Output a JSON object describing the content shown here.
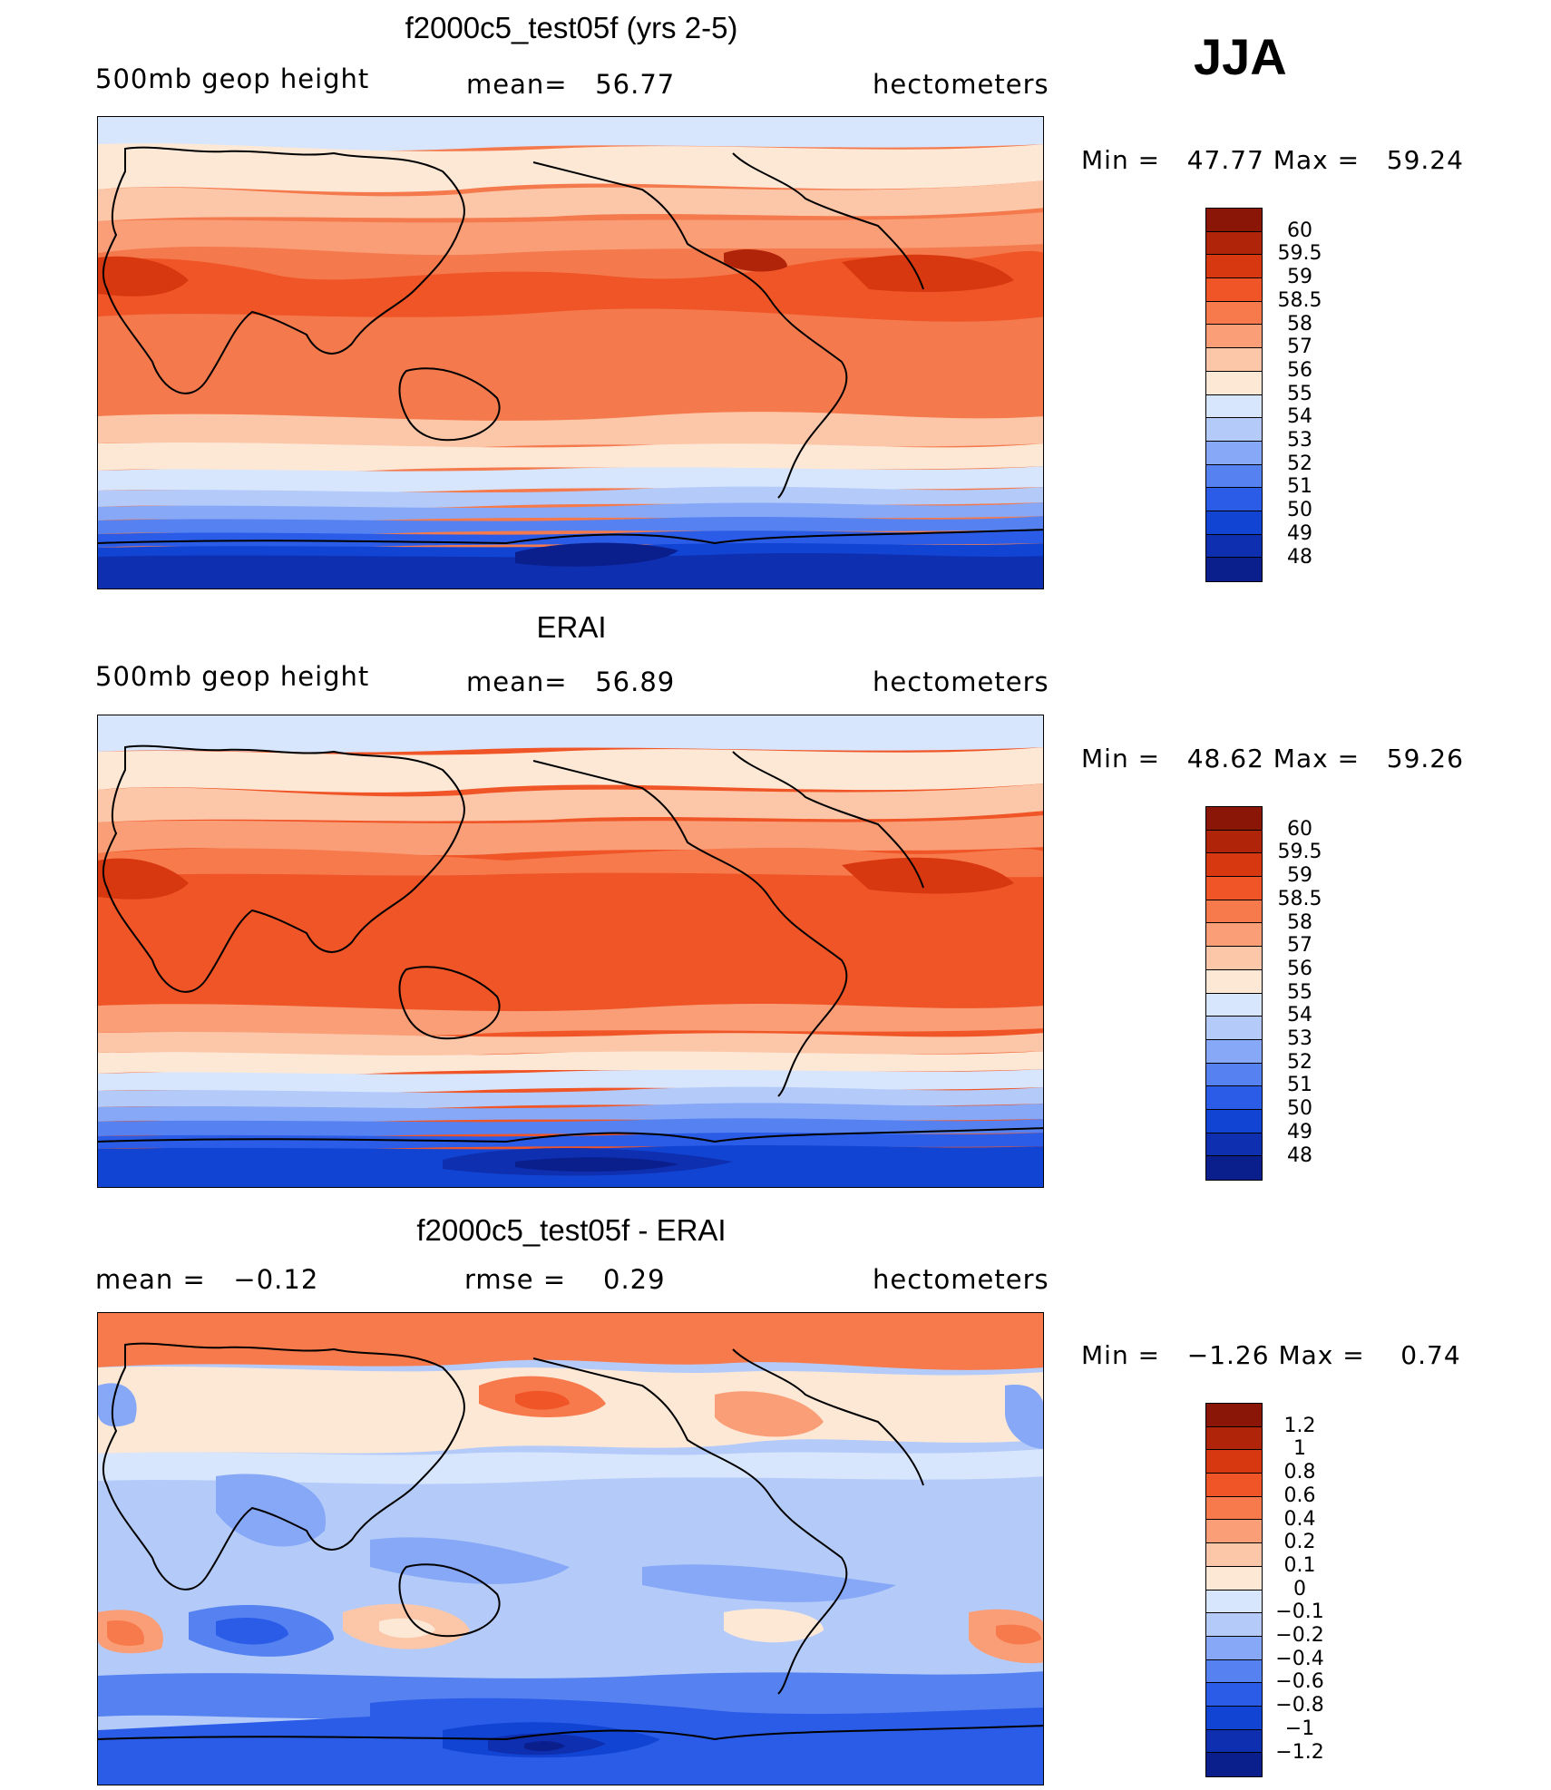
{
  "season": "JJA",
  "panels": [
    {
      "title": "f2000c5_test05f (yrs 2-5)",
      "left_label": "500mb geop height",
      "center_label": "mean=   56.77",
      "right_label": "hectometers",
      "min_max": "Min =   47.77 Max =   59.24",
      "kind": "field",
      "colors": [
        "#0a1e8c",
        "#0d2fb0",
        "#1244d4",
        "#2a5ce8",
        "#5582f0",
        "#86a8f6",
        "#b4cbfa",
        "#d7e6fd",
        "#fde8d6",
        "#fcc6a8",
        "#fa9e77",
        "#f77a4d",
        "#f05527",
        "#d8380f",
        "#b0240a",
        "#8a1607"
      ],
      "ticks": [
        "60",
        "59.5",
        "59",
        "58.5",
        "58",
        "57",
        "56",
        "55",
        "54",
        "53",
        "52",
        "51",
        "50",
        "49",
        "48"
      ]
    },
    {
      "title": "ERAI",
      "left_label": "500mb geop height",
      "center_label": "mean=   56.89",
      "right_label": "hectometers",
      "min_max": "Min =   48.62 Max =   59.26",
      "kind": "field",
      "colors": [
        "#0a1e8c",
        "#0d2fb0",
        "#1244d4",
        "#2a5ce8",
        "#5582f0",
        "#86a8f6",
        "#b4cbfa",
        "#d7e6fd",
        "#fde8d6",
        "#fcc6a8",
        "#fa9e77",
        "#f77a4d",
        "#f05527",
        "#d8380f",
        "#b0240a",
        "#8a1607"
      ],
      "ticks": [
        "60",
        "59.5",
        "59",
        "58.5",
        "58",
        "57",
        "56",
        "55",
        "54",
        "53",
        "52",
        "51",
        "50",
        "49",
        "48"
      ]
    },
    {
      "title": "f2000c5_test05f - ERAI",
      "left_label": "mean =   −0.12",
      "center_label": "rmse =    0.29",
      "right_label": "hectometers",
      "min_max": "Min =   −1.26 Max =    0.74",
      "kind": "diff",
      "colors": [
        "#0a1e8c",
        "#0d2fb0",
        "#1244d4",
        "#2a5ce8",
        "#5582f0",
        "#86a8f6",
        "#b4cbfa",
        "#d7e6fd",
        "#fde8d6",
        "#fcc6a8",
        "#fa9e77",
        "#f77a4d",
        "#f05527",
        "#d8380f",
        "#b0240a",
        "#8a1607"
      ],
      "ticks": [
        "1.2",
        "1",
        "0.8",
        "0.6",
        "0.4",
        "0.2",
        "0.1",
        "0",
        "−0.1",
        "−0.2",
        "−0.4",
        "−0.6",
        "−0.8",
        "−1",
        "−1.2"
      ]
    }
  ]
}
